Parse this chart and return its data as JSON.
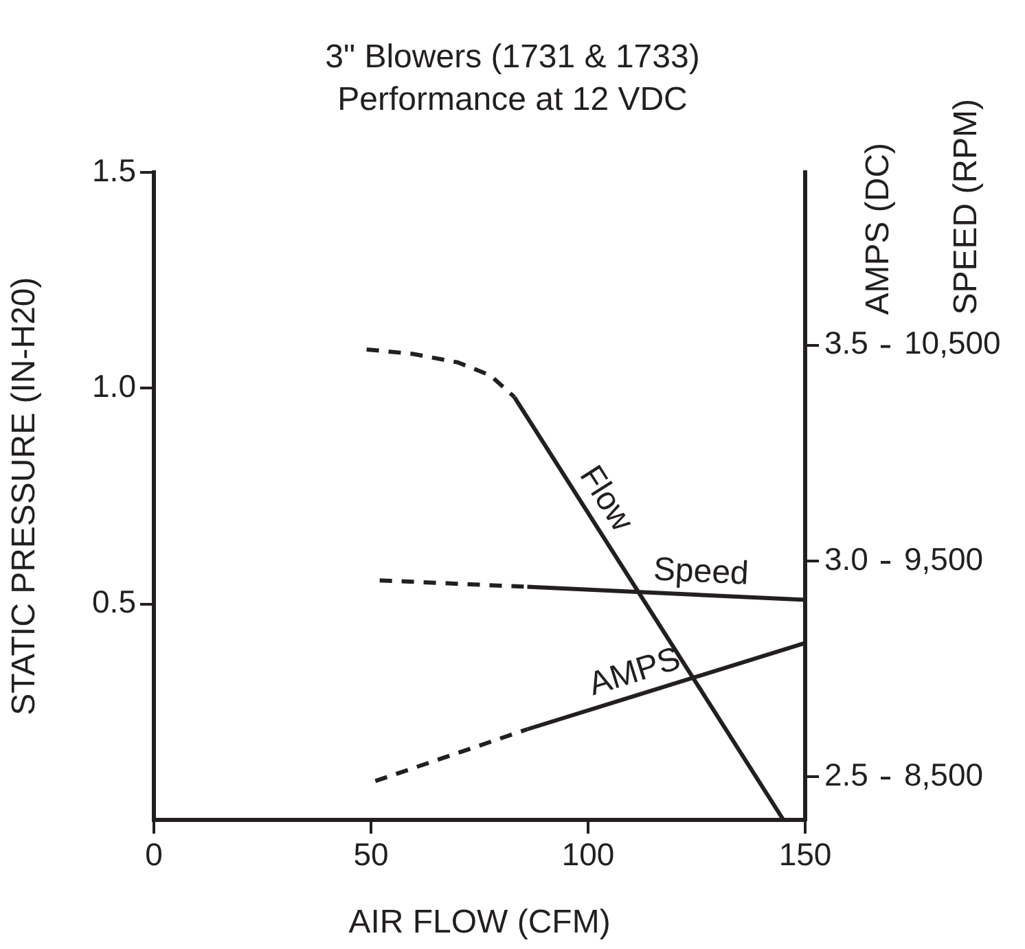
{
  "chart_data": {
    "type": "line",
    "title": "3\" Blowers (1731 & 1733)",
    "subtitle": "Performance at 12 VDC",
    "xlabel": "AIR FLOW (CFM)",
    "ylabel": "STATIC PRESSURE (IN-H20)",
    "y2label": "AMPS (DC)",
    "y3label": "SPEED (RPM)",
    "xlim": [
      0,
      150
    ],
    "xticks": [
      0,
      50,
      100,
      150
    ],
    "ylim": [
      0,
      1.5
    ],
    "yticks": [
      0.5,
      {
        "value": 1,
        "label": "1.0"
      },
      1.5
    ],
    "y2lim": [
      2.4,
      3.9
    ],
    "y2ticks": [
      2.5,
      {
        "value": 3,
        "label": "3.0"
      },
      3.5
    ],
    "y3lim": [
      8300,
      11300
    ],
    "y3ticks": [
      {
        "value": 8500,
        "label": "8,500"
      },
      {
        "value": 9500,
        "label": "9,500"
      },
      {
        "value": 10500,
        "label": "10,500"
      }
    ],
    "marker": "none",
    "series": [
      {
        "name": "Flow",
        "color": "#231f20",
        "line_style": "solid",
        "x": [
          83,
          145
        ],
        "values": [
          0.98,
          0
        ]
      },
      {
        "color": "#231f20",
        "line_style": "dashed",
        "x": [
          49,
          59.5,
          70,
          77.5,
          83
        ],
        "values": [
          1.09,
          1.08,
          1.06,
          1.03,
          0.98
        ]
      },
      {
        "name": "Speed",
        "color": "#231f20",
        "line_style": "solid",
        "axis": "y3",
        "x": [
          86,
          150
        ],
        "values": [
          9380,
          9320
        ]
      },
      {
        "color": "#231f20",
        "line_style": "dashed",
        "axis": "y3",
        "x": [
          52,
          86
        ],
        "values": [
          9410,
          9380
        ]
      },
      {
        "name": "AMPS",
        "color": "#231f20",
        "line_style": "solid",
        "axis": "y2",
        "x": [
          86,
          150
        ],
        "values": [
          2.61,
          2.81
        ]
      },
      {
        "color": "#231f20",
        "line_style": "dashed",
        "axis": "y2",
        "x": [
          51,
          86
        ],
        "values": [
          2.49,
          2.61
        ]
      }
    ]
  }
}
